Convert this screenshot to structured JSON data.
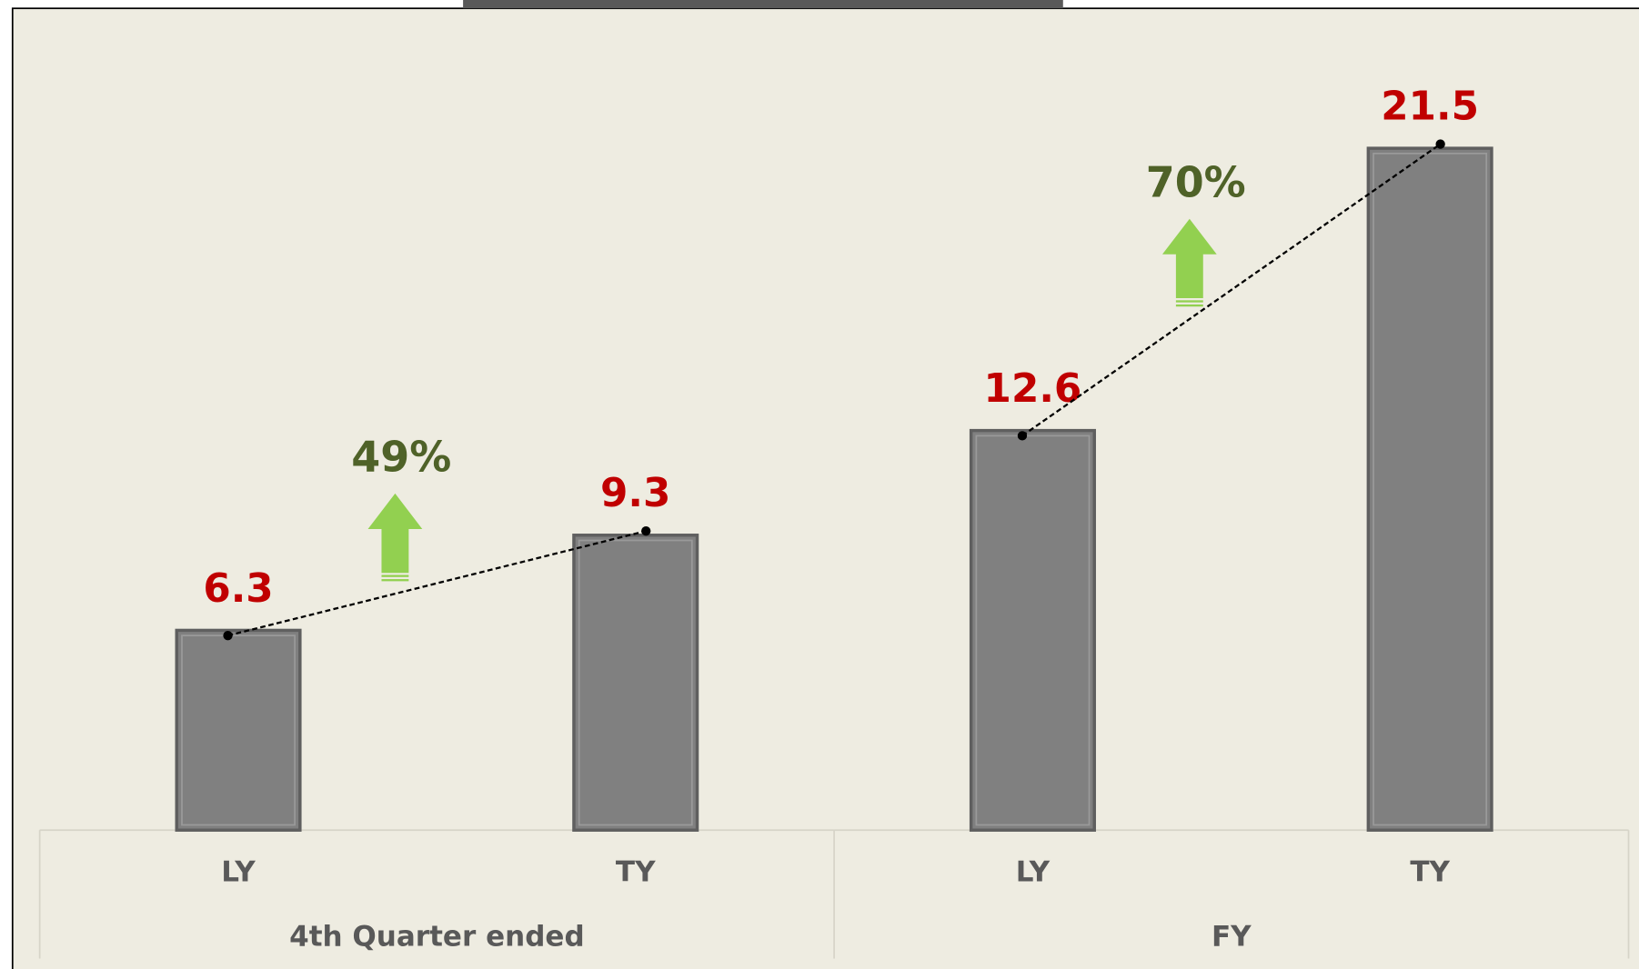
{
  "chart_data": {
    "type": "bar",
    "categories": [
      "LY",
      "TY",
      "LY",
      "TY"
    ],
    "groups": [
      "4th Quarter ended",
      "FY"
    ],
    "values": [
      6.3,
      9.3,
      12.6,
      21.5
    ],
    "color": "#808080",
    "value_label_color": "#c00000",
    "annotations": [
      "49%",
      "70%"
    ],
    "annotation_color": "#4f6228",
    "arrow_color": "#92d050"
  }
}
